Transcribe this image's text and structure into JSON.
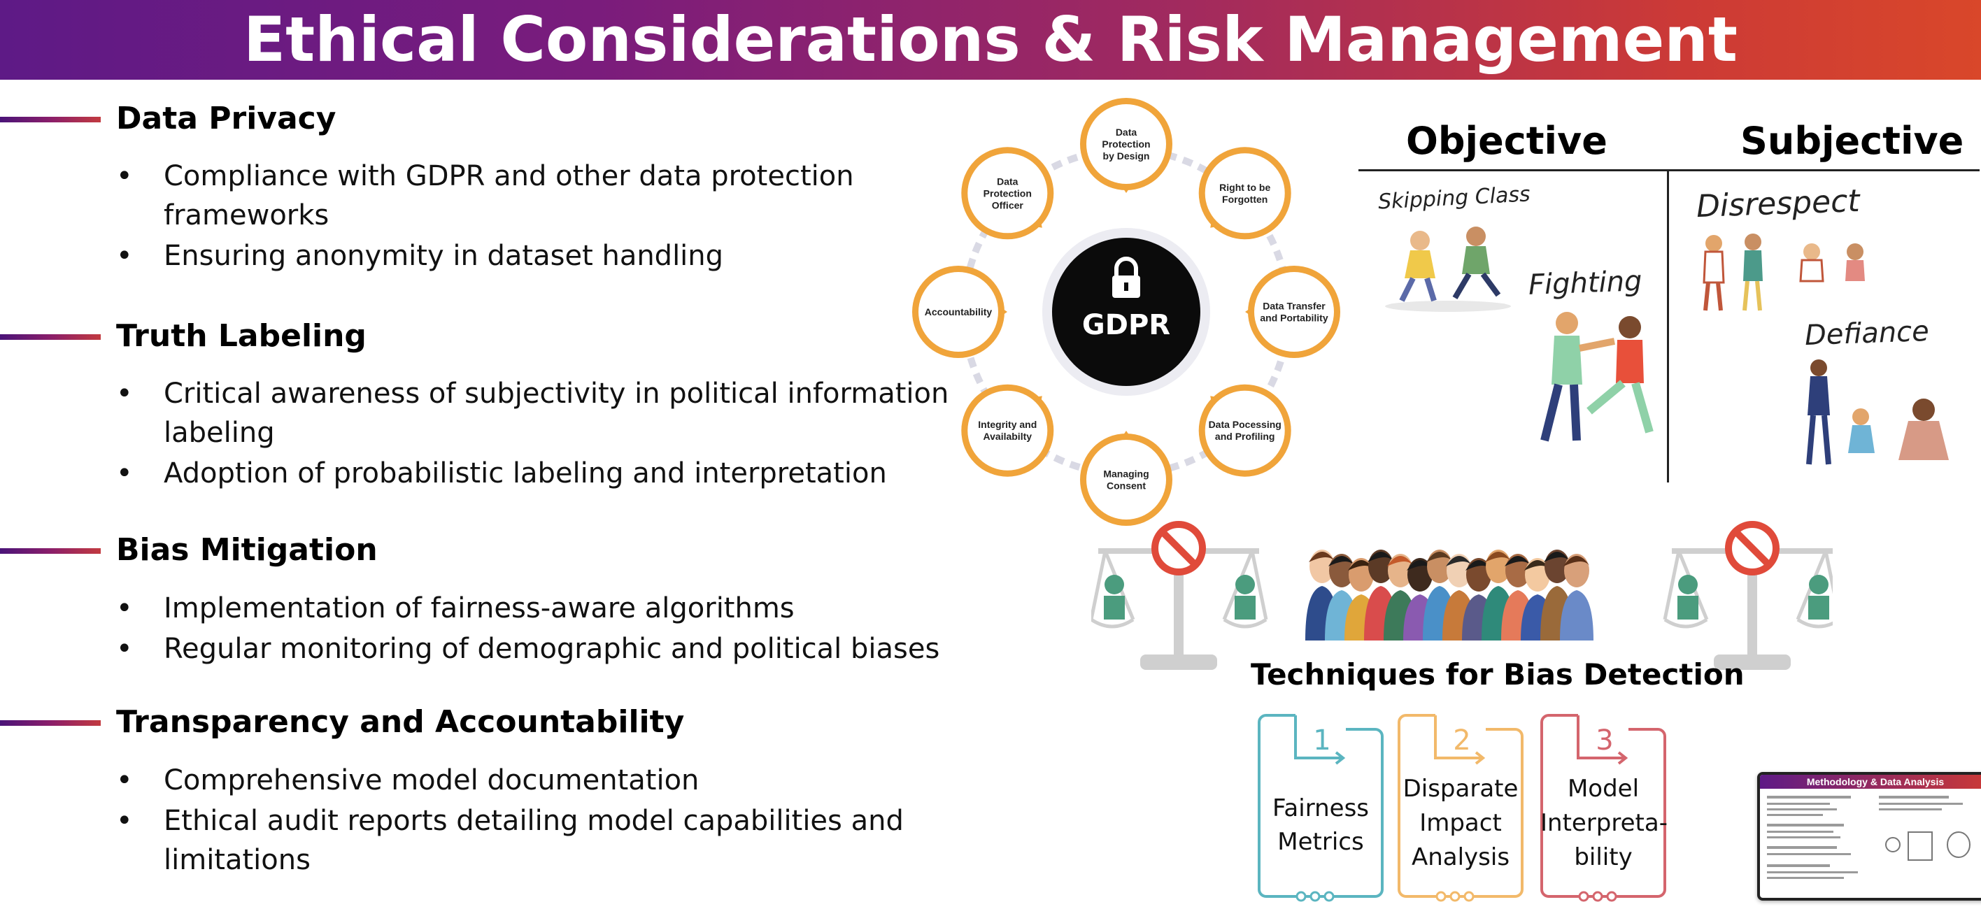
{
  "header": {
    "title": "Ethical Considerations & Risk Management"
  },
  "sections": [
    {
      "title": "Data Privacy",
      "bullets": [
        "Compliance with GDPR and other data protection frameworks",
        "Ensuring anonymity in dataset handling"
      ]
    },
    {
      "title": "Truth Labeling",
      "bullets": [
        "Critical awareness of subjectivity in political information labeling",
        "Adoption of probabilistic labeling and interpretation"
      ]
    },
    {
      "title": "Bias Mitigation",
      "bullets": [
        "Implementation of fairness-aware algorithms",
        "Regular monitoring of demographic and political biases"
      ]
    },
    {
      "title": "Transparency and Accountability",
      "bullets": [
        "Comprehensive model documentation",
        "Ethical audit reports detailing model capabilities and limitations"
      ]
    }
  ],
  "gdpr": {
    "center": "GDPR",
    "nodes": [
      [
        "Data",
        "Protection",
        "by Design"
      ],
      [
        "Right to be",
        "Forgotten"
      ],
      [
        "Data Transfer",
        "and Portability"
      ],
      [
        "Data Pocessing",
        "and Profiling"
      ],
      [
        "Managing",
        "Consent"
      ],
      [
        "Integrity and",
        "Availabilty"
      ],
      [
        "Accountability"
      ],
      [
        "Data",
        "Protection",
        "Officer"
      ]
    ],
    "accent_color": "#f0a43a"
  },
  "behavior": {
    "objective": "Objective",
    "subjective": "Subjective",
    "examples": {
      "skipping": "Skipping Class",
      "fighting": "Fighting",
      "disrespect": "Disrespect",
      "defiance": "Defiance"
    }
  },
  "bias": {
    "title": "Techniques for Bias Detection",
    "techniques": [
      {
        "number": "1",
        "lines": [
          "Fairness",
          "Metrics"
        ],
        "color": "#5bb5c0"
      },
      {
        "number": "2",
        "lines": [
          "Disparate",
          "Impact",
          "Analysis"
        ],
        "color": "#f2b96a"
      },
      {
        "number": "3",
        "lines": [
          "Model",
          "Interpreta-",
          "bility"
        ],
        "color": "#d4656d"
      }
    ]
  },
  "thumbnail": {
    "title": "Methodology & Data Analysis"
  }
}
